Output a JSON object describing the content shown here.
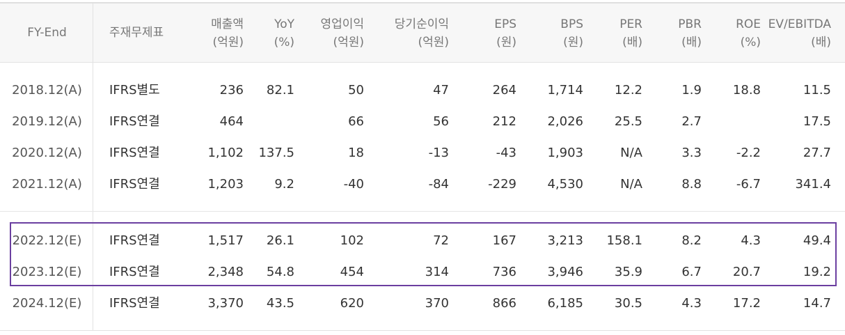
{
  "headers": [
    {
      "line1": "FY-End",
      "line2": ""
    },
    {
      "line1": "주재무제표",
      "line2": ""
    },
    {
      "line1": "매출액",
      "line2": "(억원)"
    },
    {
      "line1": "YoY",
      "line2": "(%)"
    },
    {
      "line1": "영업이익",
      "line2": "(억원)"
    },
    {
      "line1": "당기순이익",
      "line2": "(억원)"
    },
    {
      "line1": "EPS",
      "line2": "(원)"
    },
    {
      "line1": "BPS",
      "line2": "(원)"
    },
    {
      "line1": "PER",
      "line2": "(배)"
    },
    {
      "line1": "PBR",
      "line2": "(배)"
    },
    {
      "line1": "ROE",
      "line2": "(%)"
    },
    {
      "line1": "EV/EBITDA",
      "line2": "(배)"
    }
  ],
  "rows": [
    [
      "2018.12(A)",
      "IFRS별도",
      "236",
      "82.1",
      "50",
      "47",
      "264",
      "1,714",
      "12.2",
      "1.9",
      "18.8",
      "11.5"
    ],
    [
      "2019.12(A)",
      "IFRS연결",
      "464",
      "",
      "66",
      "56",
      "212",
      "2,026",
      "25.5",
      "2.7",
      "",
      "17.5"
    ],
    [
      "2020.12(A)",
      "IFRS연결",
      "1,102",
      "137.5",
      "18",
      "-13",
      "-43",
      "1,903",
      "N/A",
      "3.3",
      "-2.2",
      "27.7"
    ],
    [
      "2021.12(A)",
      "IFRS연결",
      "1,203",
      "9.2",
      "-40",
      "-84",
      "-229",
      "4,530",
      "N/A",
      "8.8",
      "-6.7",
      "341.4"
    ],
    [
      "2022.12(E)",
      "IFRS연결",
      "1,517",
      "26.1",
      "102",
      "72",
      "167",
      "3,213",
      "158.1",
      "8.2",
      "4.3",
      "49.4"
    ],
    [
      "2023.12(E)",
      "IFRS연결",
      "2,348",
      "54.8",
      "454",
      "314",
      "736",
      "3,946",
      "35.9",
      "6.7",
      "20.7",
      "19.2"
    ],
    [
      "2024.12(E)",
      "IFRS연결",
      "3,370",
      "43.5",
      "620",
      "370",
      "866",
      "6,185",
      "30.5",
      "4.3",
      "17.2",
      "14.7"
    ]
  ],
  "colors": {
    "highlight_border": "#6b3fa0",
    "header_bg": "#f7f7f7",
    "header_text": "#777777",
    "body_text": "#333333"
  }
}
